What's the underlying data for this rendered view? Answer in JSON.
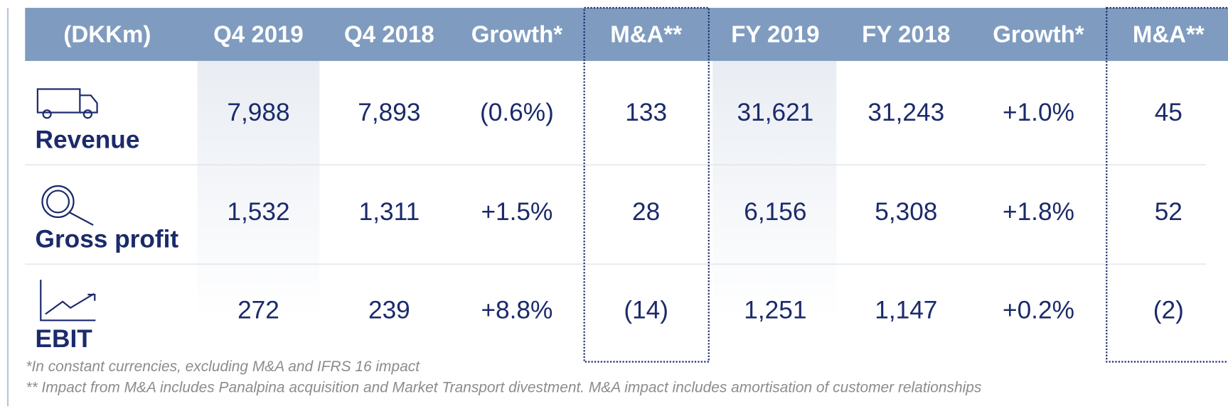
{
  "table": {
    "header": [
      "(DKKm)",
      "Q4 2019",
      "Q4 2018",
      "Growth*",
      "M&A**",
      "FY 2019",
      "FY 2018",
      "Growth*",
      "M&A**"
    ],
    "rows": [
      {
        "label": "Revenue",
        "cells": [
          "7,988",
          "7,893",
          "(0.6%)",
          "133",
          "31,621",
          "31,243",
          "+1.0%",
          "45"
        ]
      },
      {
        "label": "Gross profit",
        "cells": [
          "1,532",
          "1,311",
          "+1.5%",
          "28",
          "6,156",
          "5,308",
          "+1.8%",
          "52"
        ]
      },
      {
        "label": "EBIT",
        "cells": [
          "272",
          "239",
          "+8.8%",
          "(14)",
          "1,251",
          "1,147",
          "+0.2%",
          "(2)"
        ]
      }
    ]
  },
  "footnotes": [
    "*In constant currencies, excluding M&A and IFRS 16 impact",
    "** Impact from M&A includes Panalpina acquisition and Market Transport divestment. M&A impact includes amortisation of customer relationships"
  ]
}
